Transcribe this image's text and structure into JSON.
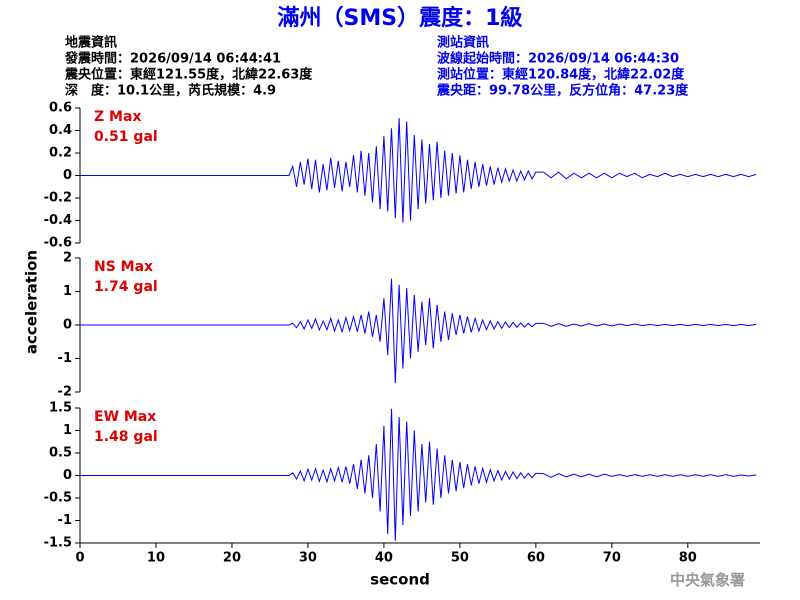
{
  "header": {
    "title": "滿州（SMS）震度：1級",
    "left": [
      "地震資訊",
      "發震時間：2026/09/14 06:44:41",
      "震央位置：東經121.55度，北緯22.63度",
      "深　度：10.1公里，芮氏規模：4.9"
    ],
    "right": [
      "測站資訊",
      "波線起始時間：2026/09/14 06:44:30",
      "測站位置：東經120.84度，北緯22.02度",
      "震央距：99.78公里，反方位角：47.23度"
    ]
  },
  "footer": "中央氣象署",
  "chart_data": [
    {
      "type": "line",
      "label": "Z Max",
      "max_label": "0.51 gal",
      "xlim": [
        0,
        89.5
      ],
      "ylim": [
        -0.6,
        0.6
      ],
      "yticks": [
        -0.6,
        -0.4,
        -0.2,
        0,
        0.2,
        0.4,
        0.6
      ],
      "x": [
        0,
        27.5,
        28,
        28.5,
        29,
        29.5,
        30,
        30.5,
        31,
        31.5,
        32,
        32.5,
        33,
        33.5,
        34,
        34.5,
        35,
        35.5,
        36,
        36.5,
        37,
        37.5,
        38,
        38.5,
        39,
        39.5,
        40,
        40.5,
        41,
        41.5,
        42,
        42.5,
        43,
        43.5,
        44,
        44.5,
        45,
        45.5,
        46,
        46.5,
        47,
        47.5,
        48,
        48.5,
        49,
        49.5,
        50,
        50.5,
        51,
        51.5,
        52,
        52.5,
        53,
        53.5,
        54,
        54.5,
        55,
        55.5,
        56,
        56.5,
        57,
        57.5,
        58,
        58.5,
        59,
        59.5,
        60,
        61,
        62,
        63,
        64,
        65,
        66,
        67,
        68,
        69,
        70,
        71,
        72,
        73,
        74,
        75,
        76,
        77,
        78,
        79,
        80,
        81,
        82,
        83,
        84,
        85,
        86,
        87,
        88,
        89
      ],
      "series": [
        {
          "color": "#0000ff",
          "values": [
            0,
            0,
            0.08,
            -0.1,
            0.12,
            -0.08,
            0.15,
            -0.12,
            0.14,
            -0.15,
            0.1,
            -0.13,
            0.16,
            -0.11,
            0.13,
            -0.14,
            0.12,
            -0.1,
            0.18,
            -0.15,
            0.22,
            -0.18,
            0.2,
            -0.24,
            0.26,
            -0.3,
            0.35,
            -0.32,
            0.42,
            -0.38,
            0.51,
            -0.42,
            0.48,
            -0.4,
            0.36,
            -0.3,
            0.32,
            -0.25,
            0.28,
            -0.22,
            0.3,
            -0.2,
            0.22,
            -0.18,
            0.2,
            -0.16,
            0.18,
            -0.15,
            0.14,
            -0.12,
            0.12,
            -0.1,
            0.1,
            -0.09,
            0.08,
            -0.08,
            0.07,
            -0.06,
            0.06,
            -0.05,
            0.05,
            -0.05,
            0.04,
            -0.04,
            0.04,
            -0.03,
            0.03,
            0.03,
            -0.02,
            0.03,
            -0.03,
            0.02,
            -0.02,
            0.02,
            -0.02,
            0.02,
            -0.02,
            0.02,
            -0.01,
            0.02,
            -0.02,
            0.01,
            -0.01,
            0.02,
            -0.01,
            0.01,
            -0.01,
            0.01,
            -0.01,
            0.01,
            -0.01,
            0.01,
            -0.01,
            0.01,
            -0.01,
            0.01
          ]
        }
      ]
    },
    {
      "type": "line",
      "label": "NS Max",
      "max_label": "1.74 gal",
      "ylabel": "acceleration",
      "xlim": [
        0,
        89.5
      ],
      "ylim": [
        -2,
        2
      ],
      "yticks": [
        -2,
        -1,
        0,
        1,
        2
      ],
      "x": [
        0,
        27.5,
        28,
        28.5,
        29,
        29.5,
        30,
        30.5,
        31,
        31.5,
        32,
        32.5,
        33,
        33.5,
        34,
        34.5,
        35,
        35.5,
        36,
        36.5,
        37,
        37.5,
        38,
        38.5,
        39,
        39.5,
        40,
        40.5,
        41,
        41.5,
        42,
        42.5,
        43,
        43.5,
        44,
        44.5,
        45,
        45.5,
        46,
        46.5,
        47,
        47.5,
        48,
        48.5,
        49,
        49.5,
        50,
        50.5,
        51,
        51.5,
        52,
        52.5,
        53,
        53.5,
        54,
        54.5,
        55,
        55.5,
        56,
        56.5,
        57,
        57.5,
        58,
        58.5,
        59,
        59.5,
        60,
        61,
        62,
        63,
        64,
        65,
        66,
        67,
        68,
        69,
        70,
        71,
        72,
        73,
        74,
        75,
        76,
        77,
        78,
        79,
        80,
        81,
        82,
        83,
        84,
        85,
        86,
        87,
        88,
        89
      ],
      "series": [
        {
          "color": "#0000ff",
          "values": [
            0,
            0,
            0.05,
            -0.08,
            0.1,
            -0.12,
            0.15,
            -0.1,
            0.18,
            -0.15,
            0.12,
            -0.14,
            0.2,
            -0.18,
            0.15,
            -0.2,
            0.22,
            -0.17,
            0.25,
            -0.2,
            0.3,
            -0.25,
            0.4,
            -0.35,
            0.3,
            -0.5,
            0.8,
            -0.9,
            1.38,
            -1.74,
            1.2,
            -1.3,
            1.1,
            -1.0,
            0.9,
            -0.8,
            0.7,
            -0.6,
            0.8,
            -0.7,
            0.6,
            -0.5,
            0.4,
            -0.45,
            0.35,
            -0.3,
            0.3,
            -0.25,
            0.25,
            -0.22,
            0.2,
            -0.18,
            0.15,
            -0.14,
            0.12,
            -0.12,
            0.1,
            -0.1,
            0.09,
            -0.08,
            0.08,
            -0.07,
            0.06,
            -0.06,
            0.05,
            -0.05,
            0.05,
            0.05,
            -0.04,
            0.04,
            -0.04,
            0.03,
            -0.03,
            0.04,
            -0.03,
            0.03,
            -0.03,
            0.03,
            -0.02,
            0.03,
            -0.02,
            0.02,
            -0.02,
            0.02,
            -0.02,
            0.02,
            -0.02,
            0.02,
            -0.02,
            0.02,
            -0.02,
            0.02,
            -0.02,
            0.02,
            -0.02,
            0.02
          ]
        }
      ]
    },
    {
      "type": "line",
      "label": "EW Max",
      "max_label": "1.48 gal",
      "xlabel": "second",
      "xlim": [
        0,
        89.5
      ],
      "xticks": [
        0,
        10,
        20,
        30,
        40,
        50,
        60,
        70,
        80
      ],
      "ylim": [
        -1.5,
        1.5
      ],
      "yticks": [
        -1.5,
        -1,
        -0.5,
        0,
        0.5,
        1,
        1.5
      ],
      "x": [
        0,
        27.5,
        28,
        28.5,
        29,
        29.5,
        30,
        30.5,
        31,
        31.5,
        32,
        32.5,
        33,
        33.5,
        34,
        34.5,
        35,
        35.5,
        36,
        36.5,
        37,
        37.5,
        38,
        38.5,
        39,
        39.5,
        40,
        40.5,
        41,
        41.5,
        42,
        42.5,
        43,
        43.5,
        44,
        44.5,
        45,
        45.5,
        46,
        46.5,
        47,
        47.5,
        48,
        48.5,
        49,
        49.5,
        50,
        50.5,
        51,
        51.5,
        52,
        52.5,
        53,
        53.5,
        54,
        54.5,
        55,
        55.5,
        56,
        56.5,
        57,
        57.5,
        58,
        58.5,
        59,
        59.5,
        60,
        61,
        62,
        63,
        64,
        65,
        66,
        67,
        68,
        69,
        70,
        71,
        72,
        73,
        74,
        75,
        76,
        77,
        78,
        79,
        80,
        81,
        82,
        83,
        84,
        85,
        86,
        87,
        88,
        89
      ],
      "series": [
        {
          "color": "#0000ff",
          "values": [
            0,
            0,
            0.06,
            -0.08,
            0.1,
            -0.12,
            0.14,
            -0.1,
            0.15,
            -0.13,
            0.12,
            -0.14,
            0.15,
            -0.12,
            0.18,
            -0.15,
            0.2,
            -0.18,
            0.25,
            -0.3,
            0.35,
            -0.4,
            0.45,
            -0.5,
            0.7,
            -0.8,
            1.1,
            -1.3,
            1.48,
            -1.45,
            1.3,
            -1.1,
            1.2,
            -0.9,
            1.0,
            -0.8,
            0.7,
            -0.6,
            0.75,
            -0.65,
            0.6,
            -0.5,
            0.45,
            -0.4,
            0.35,
            -0.35,
            0.3,
            -0.28,
            0.25,
            -0.22,
            0.2,
            -0.18,
            0.16,
            -0.15,
            0.13,
            -0.12,
            0.11,
            -0.1,
            0.09,
            -0.08,
            0.08,
            -0.07,
            0.06,
            -0.06,
            0.05,
            -0.05,
            0.05,
            0.04,
            -0.04,
            0.04,
            -0.03,
            0.03,
            -0.03,
            0.03,
            -0.03,
            0.03,
            -0.02,
            0.02,
            -0.02,
            0.02,
            -0.02,
            0.02,
            -0.02,
            0.02,
            -0.02,
            0.02,
            -0.02,
            0.02,
            -0.02,
            0.02,
            -0.02,
            0.02,
            -0.02,
            0.01,
            -0.01,
            0.01
          ]
        }
      ]
    }
  ]
}
